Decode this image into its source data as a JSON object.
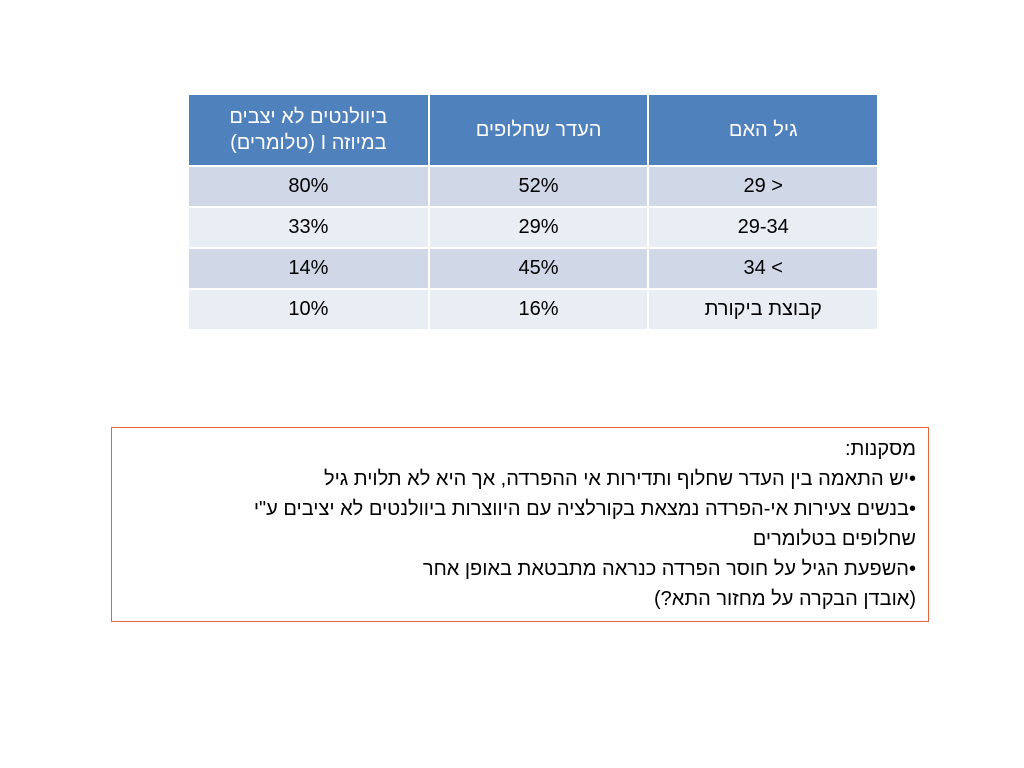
{
  "table": {
    "headers": {
      "age": "גיל האם",
      "missing_replacements": "העדר שחלופים",
      "ovulation_line1": "ביוולנטים לא יצבים",
      "ovulation_line2": "במיוזה I (טלומרים)"
    },
    "rows": [
      {
        "age": "29 >",
        "missing": "52%",
        "ovulation": "80%"
      },
      {
        "age": "29-34",
        "missing": "29%",
        "ovulation": "33%"
      },
      {
        "age": "34 <",
        "missing": "45%",
        "ovulation": "14%"
      },
      {
        "age": "קבוצת ביקורת",
        "missing": "16%",
        "ovulation": "10%"
      }
    ],
    "colors": {
      "header": "#4f81bd",
      "row_dark": "#d0d8e8",
      "row_light": "#e9edf4"
    }
  },
  "conclusions": {
    "title": "מסקנות:",
    "bullet1": "•יש התאמה בין העדר שחלוף ותדירות אי ההפרדה, אך היא לא תלוית גיל",
    "bullet2_line1": "•בנשים צעירות אי-הפרדה נמצאת בקורלציה עם היווצרות ביוולנטים לא יציבים ע\"י",
    "bullet2_line2": "שחלופים בטלומרים",
    "bullet3_line1": "•השפעת הגיל על חוסר הפרדה כנראה מתבטאת באופן אחר",
    "bullet3_line2": "(אובדן הבקרה על מחזור התא?)",
    "border_color": "#e8643c"
  }
}
